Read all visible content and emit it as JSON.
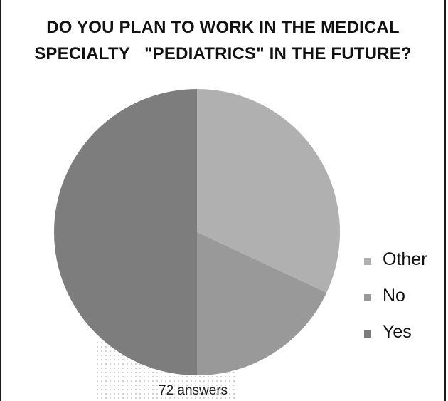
{
  "chart_data": {
    "type": "pie",
    "title_lines": [
      "DO YOU PLAN TO WORK IN THE MEDICAL",
      "SPECIALTY   \"PEDIATRICS\" IN THE FUTURE?"
    ],
    "slices": [
      {
        "name": "Other",
        "value": 23,
        "color": "#b0b0b0"
      },
      {
        "name": "No",
        "value": 13,
        "color": "#999999"
      },
      {
        "name": "Yes",
        "value": 36,
        "color": "#7d7d7d"
      }
    ],
    "legend_position": "right",
    "note": "72 answers"
  }
}
